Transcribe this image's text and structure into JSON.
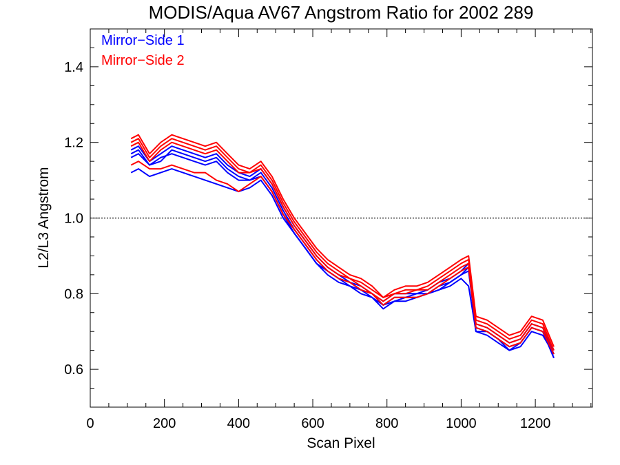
{
  "chart_data": {
    "type": "line",
    "title": "MODIS/Aqua AV67 Angstrom Ratio for 2002 289",
    "xlabel": "Scan Pixel",
    "ylabel": "L2/L3 Angstrom",
    "xlim": [
      0,
      1354
    ],
    "ylim": [
      0.5,
      1.5
    ],
    "xticks": [
      0,
      200,
      400,
      600,
      800,
      1000,
      1200
    ],
    "yticks": [
      0.6,
      0.8,
      1.0,
      1.2,
      1.4
    ],
    "xtick_labels": [
      "0",
      "200",
      "400",
      "600",
      "800",
      "1000",
      "1200"
    ],
    "ytick_labels": [
      "0.6",
      "0.8",
      "1.0",
      "1.2",
      "1.4"
    ],
    "reference_line": {
      "y": 1.0,
      "style": "dotted"
    },
    "legend_position": "top-left",
    "legend": [
      {
        "label": "Mirror−Side 1",
        "color": "#0000ff"
      },
      {
        "label": "Mirror−Side 2",
        "color": "#ff0000"
      }
    ],
    "series": [
      {
        "group": "Mirror−Side 1",
        "color": "#0000ff",
        "x": [
          110,
          130,
          160,
          190,
          220,
          250,
          280,
          310,
          340,
          370,
          400,
          430,
          460,
          490,
          520,
          550,
          580,
          610,
          640,
          670,
          700,
          730,
          760,
          790,
          820,
          850,
          880,
          910,
          940,
          970,
          1000,
          1020,
          1040,
          1070,
          1100,
          1130,
          1160,
          1190,
          1220,
          1250
        ],
        "y": [
          1.12,
          1.13,
          1.11,
          1.12,
          1.13,
          1.12,
          1.11,
          1.1,
          1.09,
          1.08,
          1.07,
          1.08,
          1.1,
          1.06,
          1.0,
          0.96,
          0.92,
          0.88,
          0.85,
          0.83,
          0.82,
          0.8,
          0.79,
          0.77,
          0.78,
          0.78,
          0.79,
          0.8,
          0.81,
          0.82,
          0.84,
          0.82,
          0.7,
          0.69,
          0.67,
          0.65,
          0.66,
          0.7,
          0.69,
          0.64
        ]
      },
      {
        "group": "Mirror−Side 1",
        "color": "#0000ff",
        "x": [
          110,
          130,
          160,
          190,
          220,
          250,
          280,
          310,
          340,
          370,
          400,
          430,
          460,
          490,
          520,
          550,
          580,
          610,
          640,
          670,
          700,
          730,
          760,
          790,
          820,
          850,
          880,
          910,
          940,
          970,
          1000,
          1020,
          1040,
          1070,
          1100,
          1130,
          1160,
          1190,
          1220,
          1250
        ],
        "y": [
          1.16,
          1.17,
          1.14,
          1.15,
          1.18,
          1.17,
          1.16,
          1.15,
          1.16,
          1.13,
          1.11,
          1.1,
          1.12,
          1.08,
          1.02,
          0.97,
          0.93,
          0.89,
          0.86,
          0.84,
          0.83,
          0.81,
          0.8,
          0.77,
          0.79,
          0.79,
          0.8,
          0.8,
          0.82,
          0.83,
          0.85,
          0.86,
          0.71,
          0.7,
          0.68,
          0.66,
          0.67,
          0.71,
          0.7,
          0.63
        ]
      },
      {
        "group": "Mirror−Side 1",
        "color": "#0000ff",
        "x": [
          110,
          130,
          160,
          190,
          220,
          250,
          280,
          310,
          340,
          370,
          400,
          430,
          460,
          490,
          520,
          550,
          580,
          610,
          640,
          670,
          700,
          730,
          760,
          790,
          820,
          850,
          880,
          910,
          940,
          970,
          1000,
          1020,
          1040,
          1070,
          1100,
          1130,
          1160,
          1190,
          1220,
          1250
        ],
        "y": [
          1.18,
          1.19,
          1.15,
          1.17,
          1.19,
          1.18,
          1.17,
          1.16,
          1.17,
          1.14,
          1.12,
          1.11,
          1.13,
          1.09,
          1.03,
          0.98,
          0.94,
          0.9,
          0.87,
          0.85,
          0.83,
          0.82,
          0.8,
          0.78,
          0.8,
          0.8,
          0.8,
          0.81,
          0.83,
          0.84,
          0.86,
          0.88,
          0.72,
          0.71,
          0.69,
          0.67,
          0.68,
          0.72,
          0.71,
          0.64
        ]
      },
      {
        "group": "Mirror−Side 1",
        "color": "#0000ff",
        "x": [
          110,
          130,
          160,
          190,
          220,
          250,
          280,
          310,
          340,
          370,
          400,
          430,
          460,
          490,
          520,
          550,
          580,
          610,
          640,
          670,
          700,
          730,
          760,
          790,
          820,
          850,
          880,
          910,
          940,
          970,
          1000,
          1020,
          1040,
          1070,
          1100,
          1130,
          1160,
          1190,
          1220,
          1250
        ],
        "y": [
          1.17,
          1.18,
          1.14,
          1.16,
          1.17,
          1.16,
          1.15,
          1.14,
          1.15,
          1.12,
          1.1,
          1.1,
          1.11,
          1.07,
          1.01,
          0.96,
          0.92,
          0.88,
          0.86,
          0.84,
          0.82,
          0.81,
          0.79,
          0.76,
          0.78,
          0.79,
          0.79,
          0.8,
          0.81,
          0.83,
          0.85,
          0.87,
          0.7,
          0.7,
          0.68,
          0.65,
          0.67,
          0.71,
          0.7,
          0.63
        ]
      },
      {
        "group": "Mirror−Side 2",
        "color": "#ff0000",
        "x": [
          110,
          130,
          160,
          190,
          220,
          250,
          280,
          310,
          340,
          370,
          400,
          430,
          460,
          490,
          520,
          550,
          580,
          610,
          640,
          670,
          700,
          730,
          760,
          790,
          820,
          850,
          880,
          910,
          940,
          970,
          1000,
          1020,
          1040,
          1070,
          1100,
          1130,
          1160,
          1190,
          1220,
          1250
        ],
        "y": [
          1.14,
          1.15,
          1.13,
          1.13,
          1.14,
          1.13,
          1.12,
          1.12,
          1.1,
          1.09,
          1.07,
          1.09,
          1.11,
          1.07,
          1.01,
          0.97,
          0.93,
          0.89,
          0.86,
          0.84,
          0.83,
          0.81,
          0.8,
          0.77,
          0.79,
          0.79,
          0.79,
          0.8,
          0.82,
          0.84,
          0.86,
          0.87,
          0.71,
          0.7,
          0.68,
          0.66,
          0.67,
          0.71,
          0.7,
          0.64
        ]
      },
      {
        "group": "Mirror−Side 2",
        "color": "#ff0000",
        "x": [
          110,
          130,
          160,
          190,
          220,
          250,
          280,
          310,
          340,
          370,
          400,
          430,
          460,
          490,
          520,
          550,
          580,
          610,
          640,
          670,
          700,
          730,
          760,
          790,
          820,
          850,
          880,
          910,
          940,
          970,
          1000,
          1020,
          1040,
          1070,
          1100,
          1130,
          1160,
          1190,
          1220,
          1250
        ],
        "y": [
          1.2,
          1.21,
          1.16,
          1.19,
          1.21,
          1.2,
          1.19,
          1.18,
          1.19,
          1.16,
          1.13,
          1.12,
          1.14,
          1.1,
          1.04,
          0.99,
          0.95,
          0.91,
          0.88,
          0.86,
          0.84,
          0.83,
          0.81,
          0.79,
          0.8,
          0.81,
          0.81,
          0.82,
          0.84,
          0.86,
          0.88,
          0.89,
          0.73,
          0.72,
          0.7,
          0.68,
          0.69,
          0.73,
          0.72,
          0.65
        ]
      },
      {
        "group": "Mirror−Side 2",
        "color": "#ff0000",
        "x": [
          110,
          130,
          160,
          190,
          220,
          250,
          280,
          310,
          340,
          370,
          400,
          430,
          460,
          490,
          520,
          550,
          580,
          610,
          640,
          670,
          700,
          730,
          760,
          790,
          820,
          850,
          880,
          910,
          940,
          970,
          1000,
          1020,
          1040,
          1070,
          1100,
          1130,
          1160,
          1190,
          1220,
          1250
        ],
        "y": [
          1.21,
          1.22,
          1.17,
          1.2,
          1.22,
          1.21,
          1.2,
          1.19,
          1.2,
          1.17,
          1.14,
          1.13,
          1.15,
          1.11,
          1.05,
          1.0,
          0.96,
          0.92,
          0.89,
          0.87,
          0.85,
          0.84,
          0.82,
          0.79,
          0.81,
          0.82,
          0.82,
          0.83,
          0.85,
          0.87,
          0.89,
          0.9,
          0.74,
          0.73,
          0.71,
          0.69,
          0.7,
          0.74,
          0.73,
          0.66
        ]
      },
      {
        "group": "Mirror−Side 2",
        "color": "#ff0000",
        "x": [
          110,
          130,
          160,
          190,
          220,
          250,
          280,
          310,
          340,
          370,
          400,
          430,
          460,
          490,
          520,
          550,
          580,
          610,
          640,
          670,
          700,
          730,
          760,
          790,
          820,
          850,
          880,
          910,
          940,
          970,
          1000,
          1020,
          1040,
          1070,
          1100,
          1130,
          1160,
          1190,
          1220,
          1250
        ],
        "y": [
          1.19,
          1.2,
          1.15,
          1.18,
          1.2,
          1.19,
          1.18,
          1.17,
          1.18,
          1.15,
          1.12,
          1.12,
          1.13,
          1.09,
          1.03,
          0.98,
          0.94,
          0.9,
          0.87,
          0.85,
          0.84,
          0.82,
          0.8,
          0.78,
          0.8,
          0.8,
          0.81,
          0.81,
          0.83,
          0.85,
          0.87,
          0.88,
          0.72,
          0.71,
          0.69,
          0.67,
          0.68,
          0.72,
          0.71,
          0.65
        ]
      }
    ]
  }
}
